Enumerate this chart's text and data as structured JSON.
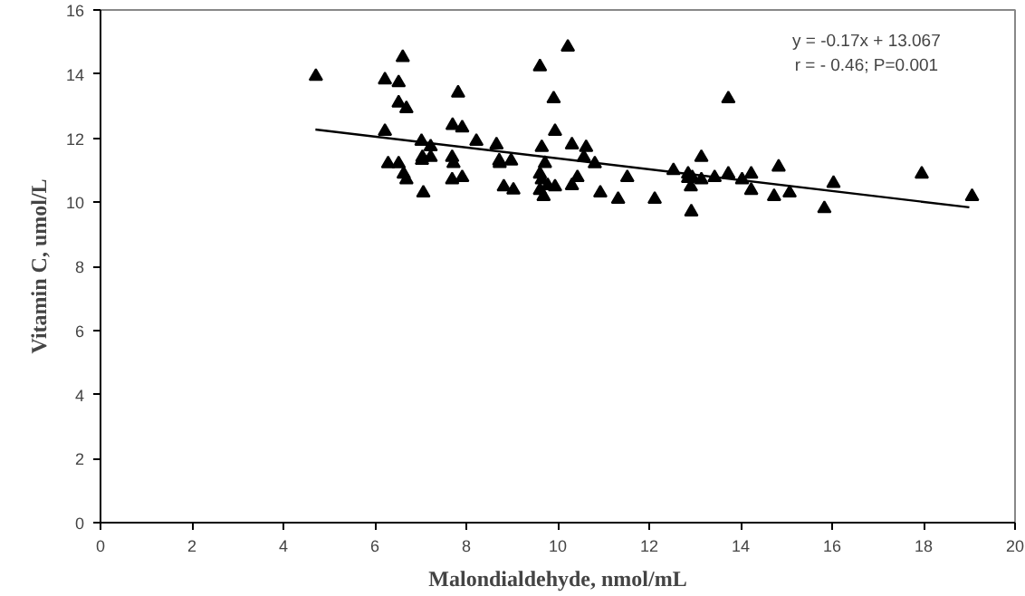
{
  "chart_data": {
    "type": "scatter",
    "xlabel": "Malondialdehyde, nmol/mL",
    "ylabel": "Vitamin C, umol/L",
    "xlim": [
      0,
      20
    ],
    "ylim": [
      0,
      16
    ],
    "xticks": [
      0,
      2,
      4,
      6,
      8,
      10,
      12,
      14,
      16,
      18,
      20
    ],
    "yticks": [
      0,
      2,
      4,
      6,
      8,
      10,
      12,
      14,
      16
    ],
    "grid": false,
    "annotations": [
      "y = -0.17x + 13.067",
      "r = - 0.46; P=0.001"
    ],
    "series": [
      {
        "marker": "triangle",
        "color": "#000000",
        "x": [
          4.71,
          6.61,
          6.22,
          6.52,
          7.82,
          9.61,
          10.22,
          9.91,
          6.52,
          6.69,
          7.7,
          7.91,
          6.22,
          9.94,
          7.02,
          7.22,
          8.22,
          8.66,
          9.65,
          10.31,
          10.62,
          10.57,
          10.81,
          6.29,
          6.52,
          7.04,
          7.22,
          7.03,
          7.69,
          7.72,
          8.72,
          8.73,
          8.98,
          9.72,
          6.63,
          6.69,
          7.06,
          7.69,
          7.91,
          8.82,
          9.03,
          9.61,
          9.65,
          9.61,
          9.69,
          9.78,
          9.94,
          10.31,
          10.43,
          10.93,
          11.32,
          11.52,
          13.73,
          13.14,
          12.53,
          12.85,
          12.85,
          12.94,
          13.14,
          13.43,
          13.73,
          14.03,
          14.23,
          14.83,
          14.23,
          14.73,
          15.07,
          16.03,
          15.83,
          17.96,
          19.06,
          12.12,
          12.92,
          12.91
        ],
        "values": [
          13.93,
          14.52,
          13.82,
          13.73,
          13.41,
          14.23,
          14.84,
          13.23,
          13.1,
          12.92,
          12.4,
          12.32,
          12.21,
          12.21,
          11.9,
          11.73,
          11.9,
          11.79,
          11.71,
          11.79,
          11.71,
          11.4,
          11.2,
          11.2,
          11.2,
          11.4,
          11.4,
          11.31,
          11.4,
          11.21,
          11.29,
          11.21,
          11.29,
          11.21,
          10.88,
          10.7,
          10.29,
          10.7,
          10.77,
          10.48,
          10.38,
          10.88,
          10.7,
          10.37,
          10.18,
          10.52,
          10.48,
          10.52,
          10.77,
          10.29,
          10.09,
          10.77,
          13.23,
          11.4,
          10.99,
          10.88,
          10.74,
          10.77,
          10.7,
          10.77,
          10.88,
          10.7,
          10.88,
          11.1,
          10.37,
          10.18,
          10.29,
          10.59,
          9.8,
          10.88,
          10.18,
          10.09,
          9.7,
          10.48
        ]
      },
      {
        "type": "line",
        "color": "#000000",
        "x": [
          4.7,
          19
        ],
        "values": [
          12.27,
          9.84
        ]
      }
    ]
  }
}
